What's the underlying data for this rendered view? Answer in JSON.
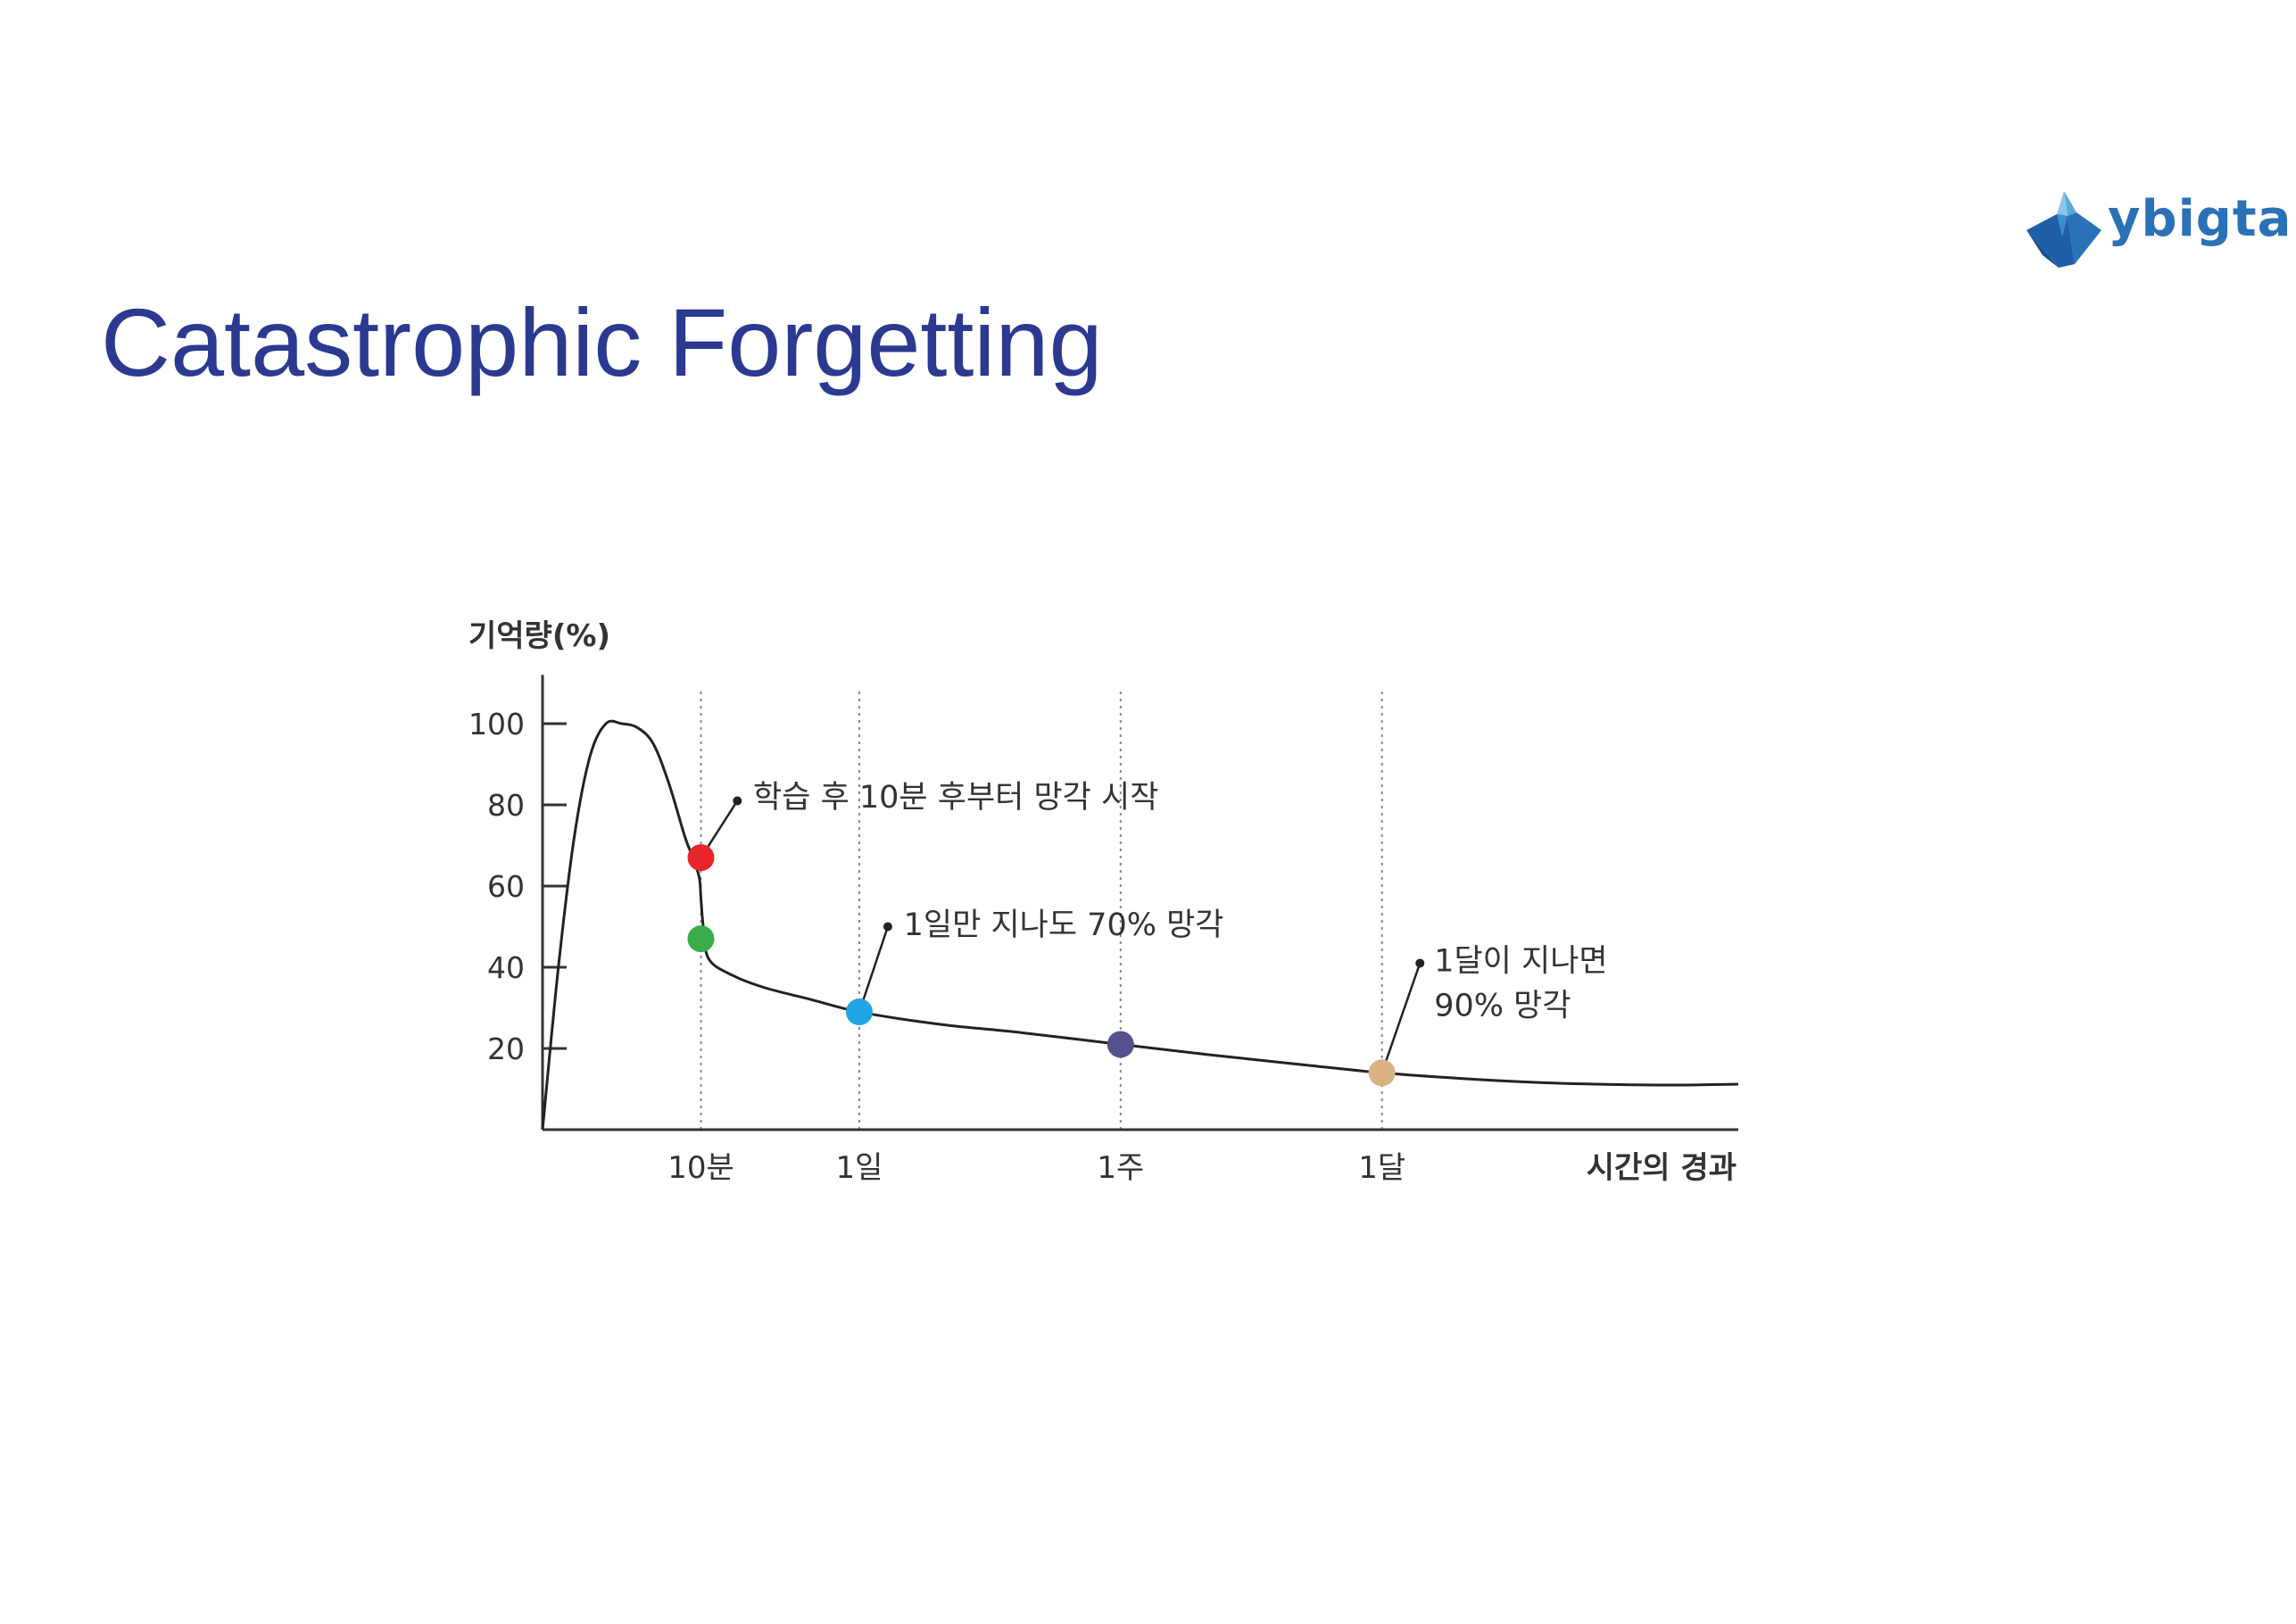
{
  "slide": {
    "title": "Catastrophic Forgetting",
    "logo_text": "ybigta"
  },
  "colors": {
    "title": "#2b3990",
    "logo": "#2a71b8",
    "curve": "#222222",
    "point_red": "#e8262c",
    "point_green": "#3aac4a",
    "point_cyan": "#22a6e3",
    "point_purple": "#55508f",
    "point_tan": "#d6b380"
  },
  "chart_data": {
    "type": "line",
    "title": "",
    "ylabel": "기억량(%)",
    "xlabel": "시간의 경과",
    "ylim": [
      0,
      110
    ],
    "yticks": [
      20,
      40,
      60,
      80,
      100
    ],
    "grid": false,
    "x_markers": [
      {
        "label": "10분",
        "pos": 10
      },
      {
        "label": "1일",
        "pos": 20
      },
      {
        "label": "1주",
        "pos": 36.5
      },
      {
        "label": "1달",
        "pos": 53
      }
    ],
    "xlim": [
      0,
      75.5
    ],
    "series": [
      {
        "x": [
          0,
          1,
          2,
          3,
          4,
          5,
          6,
          7,
          8,
          9,
          9.5,
          9.9,
          10,
          10.15,
          10.5,
          12,
          14,
          17,
          20,
          25,
          30,
          36.5,
          42,
          48,
          53,
          58,
          63,
          68,
          72,
          75.5
        ],
        "y": [
          0,
          40,
          72,
          92,
          100,
          100,
          99,
          95,
          85,
          72,
          67,
          62,
          57,
          50,
          42,
          38,
          35,
          32,
          29,
          26,
          24,
          21,
          18.5,
          16,
          14,
          12.6,
          11.6,
          11.1,
          11,
          11.2
        ]
      }
    ],
    "points": [
      {
        "x": 10,
        "y": 67,
        "color": "#e8262c"
      },
      {
        "x": 10,
        "y": 47,
        "color": "#3aac4a"
      },
      {
        "x": 20,
        "y": 29,
        "color": "#22a6e3"
      },
      {
        "x": 36.5,
        "y": 21,
        "color": "#55508f"
      },
      {
        "x": 53,
        "y": 14,
        "color": "#d6b380"
      }
    ],
    "annotations": [
      {
        "lines": [
          "학습 후 10분 후부터 망각 시작"
        ],
        "point_index": 0,
        "dot": {
          "x": 12.3,
          "y": 81
        },
        "text": {
          "x": 13.3,
          "y": 82
        }
      },
      {
        "lines": [
          "1일만 지나도 70% 망각"
        ],
        "point_index": 2,
        "dot": {
          "x": 21.8,
          "y": 50
        },
        "text": {
          "x": 22.8,
          "y": 50.5
        }
      },
      {
        "lines": [
          "1달이 지나면",
          "90% 망각"
        ],
        "point_index": 4,
        "dot": {
          "x": 55.4,
          "y": 41
        },
        "text": {
          "x": 56.3,
          "y": 41.7
        }
      }
    ]
  }
}
